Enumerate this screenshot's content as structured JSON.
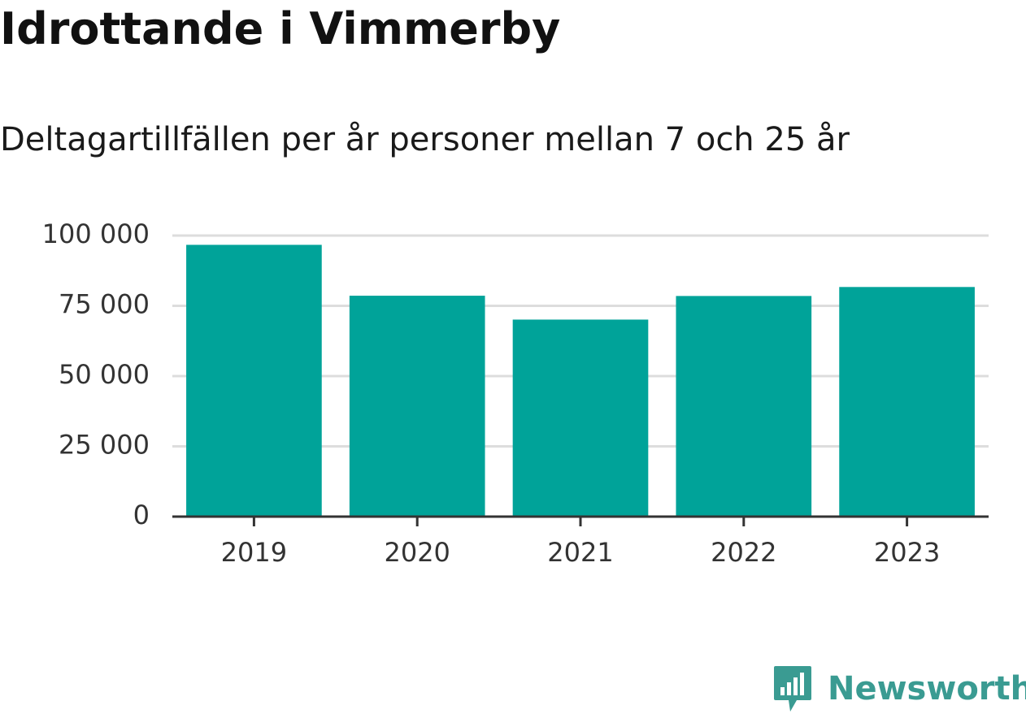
{
  "chart_data": {
    "type": "bar",
    "title": "Idrottande i Vimmerby",
    "subtitle": "Deltagartillfällen per år personer mellan 7 och 25 år",
    "categories": [
      "2019",
      "2020",
      "2021",
      "2022",
      "2023"
    ],
    "values": [
      96700,
      78600,
      70100,
      78500,
      81700
    ],
    "ylim": [
      0,
      100000
    ],
    "yticks": [
      {
        "value": 0,
        "label": "0"
      },
      {
        "value": 25000,
        "label": "25 000"
      },
      {
        "value": 50000,
        "label": "50 000"
      },
      {
        "value": 75000,
        "label": "75 000"
      },
      {
        "value": 100000,
        "label": "100 000"
      }
    ],
    "grid": true,
    "bar_color": "#00a399",
    "grid_color": "#dddddd",
    "axis_color": "#333333"
  },
  "branding": {
    "logo_text": "Newsworthy",
    "logo_color": "#3a9b92"
  }
}
